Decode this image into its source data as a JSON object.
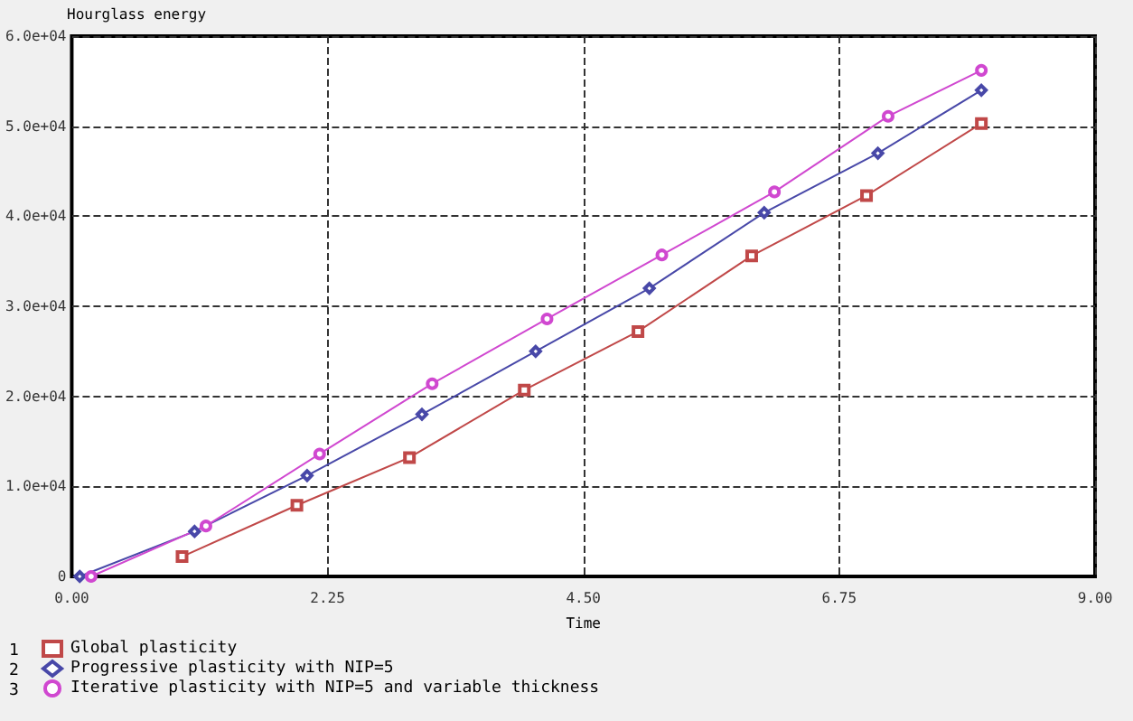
{
  "chart_data": {
    "type": "line",
    "xlabel": "Time",
    "ylabel": "Hourglass energy",
    "xlim": [
      0,
      9
    ],
    "xticks": [
      {
        "value": 0,
        "label": "0.00"
      },
      {
        "value": 2.25,
        "label": "2.25"
      },
      {
        "value": 4.5,
        "label": "4.50"
      },
      {
        "value": 6.75,
        "label": "6.75"
      },
      {
        "value": 9,
        "label": "9.00"
      }
    ],
    "ylim": [
      0,
      60000
    ],
    "yticks": [
      0,
      {
        "value": 10000,
        "label": "1.0e+04"
      },
      {
        "value": 20000,
        "label": "2.0e+04"
      },
      {
        "value": 30000,
        "label": "3.0e+04"
      },
      {
        "value": 40000,
        "label": "4.0e+04"
      },
      {
        "value": 50000,
        "label": "5.0e+04"
      },
      {
        "value": 60000,
        "label": "6.0e+04"
      }
    ],
    "grid": true,
    "legend": "bottom left",
    "annotations": [
      "1",
      "2",
      "3"
    ],
    "line_style": "solid",
    "series": [
      {
        "name": "Global plasticity",
        "color": "#c04848",
        "marker": "square",
        "x": [
          0.97,
          1.98,
          2.97,
          3.98,
          4.98,
          5.98,
          6.99,
          8.0
        ],
        "values": [
          2200,
          7900,
          13200,
          20700,
          27200,
          35600,
          42300,
          50300
        ]
      },
      {
        "name": "Progressive plasticity with NIP=5",
        "color": "#4848a8",
        "marker": "diamond",
        "x": [
          0.07,
          1.08,
          2.07,
          3.08,
          4.08,
          5.08,
          6.09,
          7.09,
          8.0
        ],
        "values": [
          0,
          5000,
          11200,
          18000,
          25000,
          32000,
          40400,
          47000,
          54000
        ]
      },
      {
        "name": "Iterative plasticity with NIP=5 and variable thickness",
        "color": "#d048d0",
        "marker": "circle",
        "x": [
          0.17,
          1.18,
          2.18,
          3.17,
          4.18,
          5.19,
          6.18,
          7.18,
          8.0
        ],
        "values": [
          0,
          5600,
          13600,
          21400,
          28600,
          35700,
          42700,
          51100,
          56200
        ]
      }
    ]
  }
}
